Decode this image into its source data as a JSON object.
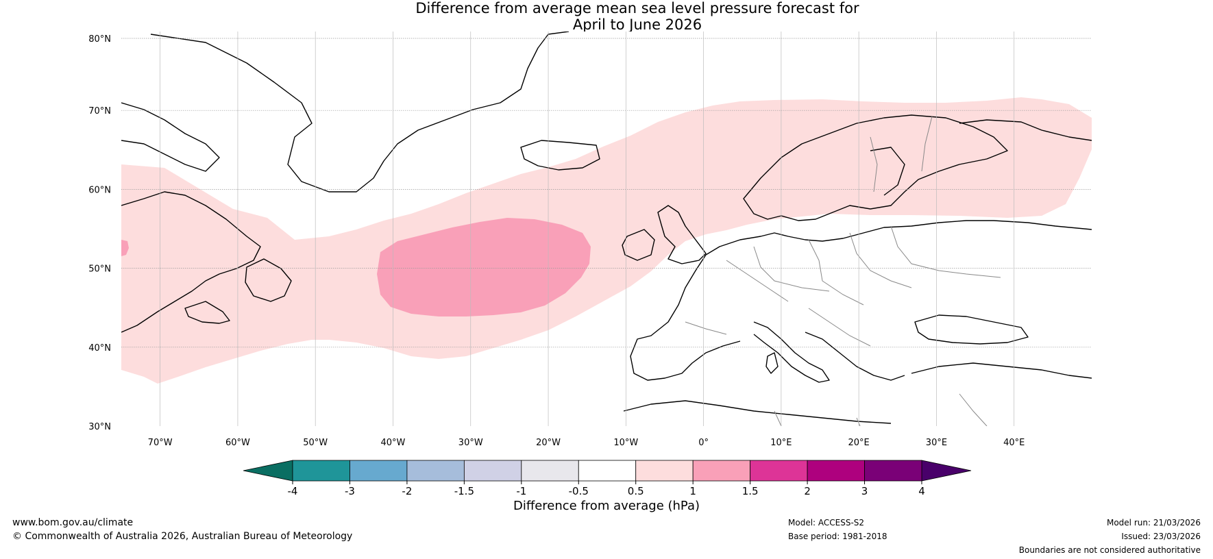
{
  "title": {
    "line1": "Difference from average mean sea level pressure forecast for",
    "line2": "April to June 2026"
  },
  "map": {
    "lat_labels": [
      "80°N",
      "70°N",
      "60°N",
      "50°N",
      "40°N",
      "30°N"
    ],
    "lon_labels": [
      "70°W",
      "60°W",
      "50°W",
      "40°W",
      "30°W",
      "20°W",
      "10°W",
      "0°",
      "10°E",
      "20°E",
      "30°E",
      "40°E"
    ],
    "lat_range": [
      30,
      80
    ],
    "lon_range": [
      -75,
      50
    ],
    "land_color": "#ffffff",
    "anomaly_light_color": "#fddddd",
    "anomaly_mid_color": "#f9a0b8"
  },
  "colorbar": {
    "ticks": [
      "-4",
      "-3",
      "-2",
      "-1.5",
      "-1",
      "-0.5",
      "0.5",
      "1",
      "1.5",
      "2",
      "3",
      "4"
    ],
    "colors": [
      "#0a6e62",
      "#1f9599",
      "#67a9cf",
      "#a6bddb",
      "#d0d1e6",
      "#e8e7ec",
      "#ffffff",
      "#fddddd",
      "#f9a0b8",
      "#dd3497",
      "#ae017e",
      "#7a0177",
      "#49006a"
    ],
    "title": "Difference from average (hPa)"
  },
  "footer": {
    "website": "www.bom.gov.au/climate",
    "copyright": "© Commonwealth of Australia 2026, Australian Bureau of Meteorology",
    "model": "Model: ACCESS-S2",
    "base_period": "Base period: 1981-2018",
    "model_run": "Model run: 21/03/2026",
    "issued": "Issued: 23/03/2026",
    "disclaimer": "Boundaries are not considered authoritative"
  }
}
